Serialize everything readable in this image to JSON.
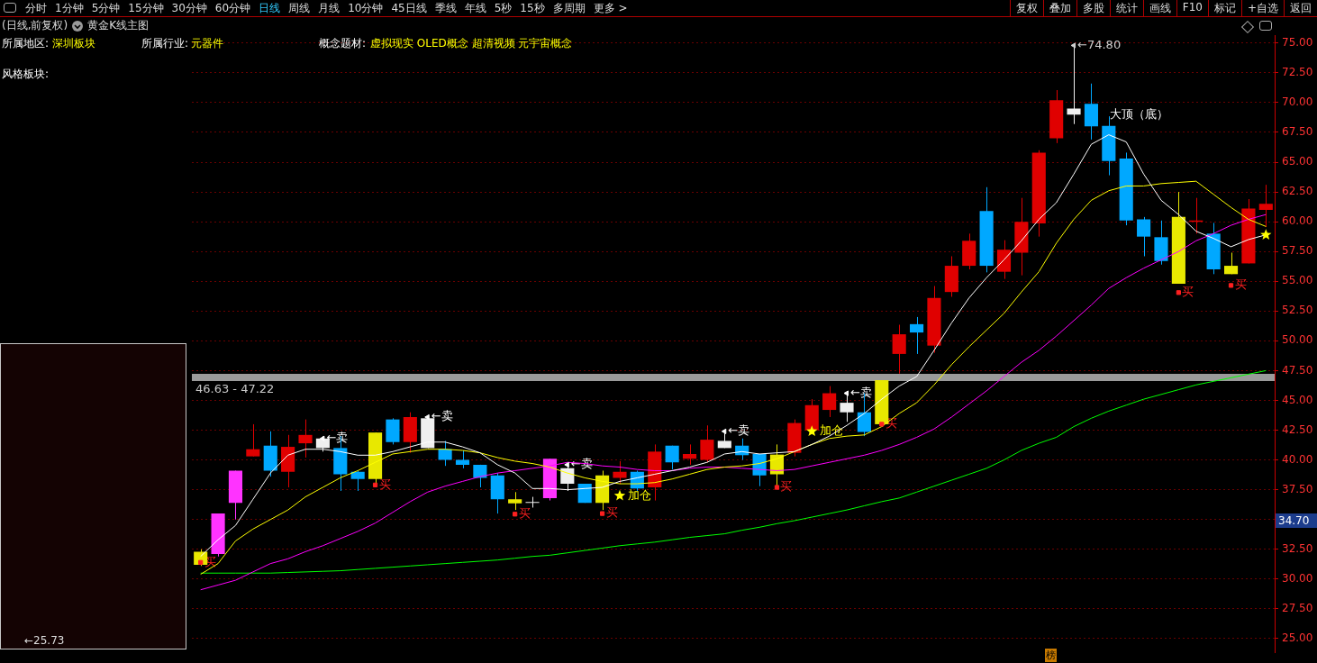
{
  "chart_data": {
    "type": "candlestick",
    "title": "(日线,前复权)",
    "subtitle": "黄金K线主图",
    "annotations": [
      "分时",
      "1分钟",
      "5分钟",
      "15分钟",
      "30分钟",
      "60分钟",
      "日线",
      "周线",
      "月线",
      "10分钟",
      "45日线",
      "季线",
      "年线",
      "5秒",
      "15秒",
      "多周期",
      "更多 >",
      "复权",
      "叠加",
      "多股",
      "统计",
      "画线",
      "F10",
      "标记",
      "+自选",
      "返回",
      "所属地区:",
      "深圳板块",
      "所属行业:",
      "元器件",
      "概念题材:",
      "虚拟现实 OLED概念 超清视频 元宇宙概念",
      "风格板块:",
      "←25.73",
      "榜",
      "34.70",
      "大顶（底）"
    ],
    "categories": [
      null,
      null,
      null,
      null,
      null,
      null,
      null,
      null,
      null,
      null,
      null,
      null,
      null,
      null,
      null,
      null,
      null,
      null,
      null,
      null,
      null,
      null,
      null,
      null,
      null,
      null,
      null,
      null,
      null,
      null,
      null,
      null,
      null,
      null,
      null,
      null,
      null,
      null,
      null,
      null,
      null,
      null,
      null,
      null,
      null,
      null,
      null,
      null,
      null,
      null,
      null,
      null,
      null,
      null,
      null,
      null,
      null,
      null,
      null,
      null,
      null,
      null
    ],
    "ohlc": [
      [
        31.2,
        32.5,
        31.1,
        32.3
      ],
      [
        32.1,
        35.5,
        31.9,
        35.5
      ],
      [
        36.4,
        39.1,
        35.0,
        39.1
      ],
      [
        40.3,
        43.0,
        40.3,
        40.9
      ],
      [
        41.2,
        42.4,
        38.6,
        39.1
      ],
      [
        39.0,
        42.1,
        37.7,
        41.1
      ],
      [
        41.4,
        43.4,
        40.2,
        42.1
      ],
      [
        41.8,
        42.0,
        40.7,
        41.0
      ],
      [
        41.0,
        42.0,
        37.4,
        38.8
      ],
      [
        39.0,
        39.1,
        37.4,
        38.4
      ],
      [
        38.4,
        42.3,
        38.0,
        42.3
      ],
      [
        43.4,
        43.5,
        41.3,
        41.5
      ],
      [
        41.5,
        44.0,
        40.6,
        43.6
      ],
      [
        43.5,
        43.6,
        41.0,
        41.0
      ],
      [
        40.9,
        41.6,
        39.5,
        40.0
      ],
      [
        40.0,
        40.8,
        39.3,
        39.6
      ],
      [
        39.6,
        39.6,
        37.7,
        38.5
      ],
      [
        38.7,
        38.9,
        35.5,
        36.7
      ],
      [
        36.35,
        37.3,
        35.8,
        36.7
      ],
      [
        36.4,
        36.9,
        36.0,
        36.4
      ],
      [
        36.8,
        40.1,
        36.6,
        40.1
      ],
      [
        39.3,
        39.6,
        37.4,
        38.0
      ],
      [
        38.0,
        38.0,
        36.4,
        36.4
      ],
      [
        36.4,
        39.1,
        35.8,
        38.7
      ],
      [
        38.5,
        39.9,
        38.0,
        39.0
      ],
      [
        39.0,
        39.1,
        37.4,
        37.6
      ],
      [
        37.7,
        41.3,
        36.6,
        40.7
      ],
      [
        41.2,
        41.2,
        39.2,
        39.8
      ],
      [
        40.1,
        41.3,
        39.6,
        40.5
      ],
      [
        40.0,
        42.9,
        39.8,
        41.7
      ],
      [
        41.6,
        42.4,
        41.0,
        41.0
      ],
      [
        41.2,
        41.8,
        40.0,
        40.4
      ],
      [
        40.5,
        40.5,
        37.8,
        38.7
      ],
      [
        38.8,
        41.3,
        37.7,
        40.45
      ],
      [
        40.6,
        43.4,
        40.3,
        43.1
      ],
      [
        42.5,
        45.1,
        42.5,
        44.6
      ],
      [
        44.2,
        46.2,
        43.6,
        45.6
      ],
      [
        44.8,
        45.6,
        43.2,
        44.0
      ],
      [
        44.0,
        45.6,
        42.0,
        42.35
      ],
      [
        43.0,
        46.7,
        42.8,
        46.7
      ],
      [
        48.9,
        51.35,
        47.25,
        50.55
      ],
      [
        51.4,
        52.0,
        48.9,
        50.7
      ],
      [
        49.6,
        54.6,
        49.0,
        53.6
      ],
      [
        54.1,
        57.1,
        53.7,
        56.3
      ],
      [
        56.3,
        59.0,
        56.0,
        58.4
      ],
      [
        60.9,
        62.9,
        55.75,
        56.3
      ],
      [
        55.8,
        58.45,
        55.2,
        57.65
      ],
      [
        57.4,
        62.0,
        55.5,
        60.0
      ],
      [
        59.85,
        66.0,
        58.75,
        65.8
      ],
      [
        67.0,
        71.05,
        66.6,
        70.2
      ],
      [
        69.5,
        74.8,
        68.2,
        69.0
      ],
      [
        69.9,
        71.6,
        66.9,
        68.0
      ],
      [
        68.05,
        68.85,
        63.9,
        65.1
      ],
      [
        65.3,
        65.8,
        59.7,
        60.1
      ],
      [
        60.2,
        60.4,
        57.1,
        58.75
      ],
      [
        58.7,
        60.1,
        56.4,
        56.7
      ],
      [
        54.8,
        62.5,
        54.8,
        60.4
      ],
      [
        60.0,
        62.0,
        59.0,
        60.1
      ],
      [
        59.0,
        59.9,
        55.6,
        56.0
      ],
      [
        55.6,
        57.4,
        55.6,
        56.3
      ],
      [
        56.5,
        61.9,
        56.5,
        61.1
      ],
      [
        61.0,
        63.1,
        59.55,
        61.5
      ]
    ],
    "colors": [
      "#e8e800",
      "#ff33ff",
      "#ff33ff",
      "#e00000",
      "#00a8ff",
      "#e00000",
      "#e00000",
      "#f0f0f0",
      "#00a8ff",
      "#00a8ff",
      "#e8e800",
      "#00a8ff",
      "#e00000",
      "#f0f0f0",
      "#00a8ff",
      "#00a8ff",
      "#00a8ff",
      "#00a8ff",
      "#e8e800",
      "#f0f0f0",
      "#ff33ff",
      "#f0f0f0",
      "#00a8ff",
      "#e8e800",
      "#e00000",
      "#00a8ff",
      "#e00000",
      "#00a8ff",
      "#e00000",
      "#e00000",
      "#f0f0f0",
      "#00a8ff",
      "#00a8ff",
      "#e8e800",
      "#e00000",
      "#e00000",
      "#e00000",
      "#f0f0f0",
      "#00a8ff",
      "#e8e800",
      "#e00000",
      "#00a8ff",
      "#e00000",
      "#e00000",
      "#e00000",
      "#00a8ff",
      "#e00000",
      "#e00000",
      "#e00000",
      "#e00000",
      "#f0f0f0",
      "#00a8ff",
      "#00a8ff",
      "#00a8ff",
      "#00a8ff",
      "#00a8ff",
      "#e8e800",
      "#e00000",
      "#00a8ff",
      "#e8e800",
      "#e00000",
      "#e00000"
    ],
    "series": [
      {
        "type": "line",
        "color": "#ffffff",
        "values": [
          31.9,
          33.3,
          34.5,
          36.7,
          38.9,
          40.4,
          40.9,
          40.9,
          40.7,
          40.4,
          40.4,
          40.7,
          41.1,
          41.5,
          41.5,
          41.1,
          40.6,
          39.6,
          38.9,
          37.6,
          37.6,
          37.5,
          37.6,
          37.7,
          38.2,
          38.5,
          38.8,
          39.1,
          39.4,
          39.8,
          40.5,
          40.7,
          40.5,
          40.6,
          40.7,
          41.3,
          42.0,
          42.9,
          43.9,
          45.1,
          46.2,
          47.0,
          49.2,
          51.5,
          53.6,
          55.3,
          56.8,
          58.4,
          60.2,
          61.6,
          64.0,
          66.5,
          67.3,
          66.7,
          64.0,
          61.8,
          60.6,
          59.2,
          58.6,
          57.9,
          58.5,
          58.9
        ]
      },
      {
        "type": "line",
        "color": "#ffff00",
        "values": [
          30.4,
          31.3,
          33.2,
          34.2,
          35.0,
          35.8,
          36.9,
          37.7,
          38.5,
          39.1,
          39.8,
          40.5,
          40.7,
          40.9,
          40.9,
          40.8,
          40.6,
          40.2,
          39.9,
          39.7,
          39.4,
          38.9,
          38.5,
          38.2,
          38.0,
          38.0,
          38.1,
          38.4,
          38.8,
          39.2,
          39.4,
          39.5,
          39.7,
          40.1,
          40.7,
          41.3,
          41.8,
          42.0,
          42.1,
          42.8,
          43.9,
          44.8,
          46.3,
          48.0,
          49.5,
          50.9,
          52.3,
          54.1,
          55.8,
          58.2,
          60.2,
          61.8,
          62.6,
          63.0,
          63.0,
          63.2,
          63.3,
          63.4,
          62.3,
          61.2,
          60.2,
          59.6
        ]
      },
      {
        "type": "line",
        "color": "#ff00ff",
        "values": [
          29.1,
          29.5,
          29.9,
          30.6,
          31.3,
          31.7,
          32.3,
          32.8,
          33.4,
          34.0,
          34.7,
          35.6,
          36.5,
          37.3,
          37.8,
          38.2,
          38.6,
          38.9,
          39.1,
          39.3,
          39.5,
          39.8,
          39.7,
          39.5,
          39.4,
          39.2,
          39.1,
          39.1,
          39.3,
          39.4,
          39.4,
          39.3,
          39.2,
          39.1,
          39.2,
          39.5,
          39.8,
          40.1,
          40.4,
          40.8,
          41.3,
          41.9,
          42.6,
          43.6,
          44.7,
          45.8,
          47.0,
          48.2,
          49.2,
          50.4,
          51.7,
          53.0,
          54.4,
          55.3,
          56.1,
          56.8,
          57.5,
          58.4,
          59.0,
          59.7,
          60.2,
          60.6
        ]
      },
      {
        "type": "line",
        "color": "#00ff00",
        "values": [
          30.5,
          30.5,
          30.5,
          30.5,
          30.5,
          30.55,
          30.6,
          30.65,
          30.7,
          30.8,
          30.9,
          31.0,
          31.1,
          31.2,
          31.3,
          31.4,
          31.5,
          31.6,
          31.75,
          31.9,
          32.0,
          32.2,
          32.4,
          32.6,
          32.8,
          32.95,
          33.1,
          33.3,
          33.5,
          33.65,
          33.8,
          34.1,
          34.35,
          34.65,
          34.9,
          35.2,
          35.5,
          35.8,
          36.15,
          36.5,
          36.8,
          37.3,
          37.8,
          38.3,
          38.8,
          39.3,
          40.0,
          40.8,
          41.4,
          41.9,
          42.8,
          43.5,
          44.1,
          44.6,
          45.1,
          45.5,
          45.9,
          46.3,
          46.6,
          46.9,
          47.2,
          47.5
        ]
      },
      {
        "type": "scatter",
        "marker": "square",
        "color": "#ff2020",
        "values": [
          31.4,
          null,
          null,
          null,
          null,
          null,
          null,
          null,
          null,
          null,
          37.9,
          null,
          null,
          null,
          null,
          null,
          null,
          null,
          35.45,
          null,
          null,
          null,
          null,
          35.5,
          null,
          null,
          null,
          null,
          null,
          null,
          null,
          null,
          null,
          37.7,
          null,
          null,
          null,
          null,
          null,
          43.0,
          null,
          null,
          null,
          null,
          null,
          null,
          null,
          null,
          null,
          null,
          null,
          null,
          null,
          null,
          null,
          null,
          54.05,
          null,
          null,
          54.65,
          null,
          null
        ],
        "value_labels": [
          "买",
          null,
          null,
          null,
          null,
          null,
          null,
          null,
          null,
          null,
          "买",
          null,
          null,
          null,
          null,
          null,
          null,
          null,
          "买",
          null,
          null,
          null,
          null,
          "买",
          null,
          null,
          null,
          null,
          null,
          null,
          null,
          null,
          null,
          "买",
          null,
          null,
          null,
          null,
          null,
          "买",
          null,
          null,
          null,
          null,
          null,
          null,
          null,
          null,
          null,
          null,
          null,
          null,
          null,
          null,
          null,
          null,
          "买",
          null,
          null,
          "买",
          null,
          null
        ]
      },
      {
        "type": "scatter",
        "marker": "triangle",
        "color": "#ffffff",
        "values": [
          null,
          null,
          null,
          null,
          null,
          null,
          null,
          41.8,
          null,
          null,
          null,
          null,
          null,
          43.6,
          null,
          null,
          null,
          null,
          null,
          null,
          null,
          39.6,
          null,
          null,
          null,
          null,
          null,
          null,
          null,
          null,
          42.4,
          null,
          null,
          null,
          null,
          null,
          null,
          45.6,
          null,
          null,
          null,
          null,
          null,
          null,
          null,
          null,
          null,
          null,
          null,
          null,
          null,
          null,
          null,
          null,
          null,
          null,
          null,
          null,
          null,
          null,
          null,
          null
        ],
        "value_labels": [
          null,
          null,
          null,
          null,
          null,
          null,
          null,
          "←卖",
          null,
          null,
          null,
          null,
          null,
          "←卖",
          null,
          null,
          null,
          null,
          null,
          null,
          null,
          "←卖",
          null,
          null,
          null,
          null,
          null,
          null,
          null,
          null,
          "←卖",
          null,
          null,
          null,
          null,
          null,
          null,
          "←卖",
          null,
          null,
          null,
          null,
          null,
          null,
          null,
          null,
          null,
          null,
          null,
          null,
          null,
          null,
          null,
          null,
          null,
          null,
          null,
          null,
          null,
          null,
          null,
          null
        ]
      },
      {
        "type": "scatter",
        "marker": "star",
        "color": "#ffff00",
        "values": [
          null,
          null,
          null,
          null,
          null,
          null,
          null,
          null,
          null,
          null,
          null,
          null,
          null,
          null,
          null,
          null,
          null,
          null,
          null,
          null,
          null,
          null,
          null,
          null,
          37.0,
          null,
          null,
          null,
          null,
          null,
          null,
          null,
          null,
          null,
          null,
          42.4,
          null,
          null,
          null,
          null,
          null,
          null,
          null,
          null,
          null,
          null,
          null,
          null,
          null,
          null,
          null,
          null,
          null,
          null,
          null,
          null,
          null,
          null,
          null,
          null,
          null,
          58.9
        ],
        "value_labels": [
          null,
          null,
          null,
          null,
          null,
          null,
          null,
          null,
          null,
          null,
          null,
          null,
          null,
          null,
          null,
          null,
          null,
          null,
          null,
          null,
          null,
          null,
          null,
          null,
          "加仓",
          null,
          null,
          null,
          null,
          null,
          null,
          null,
          null,
          null,
          null,
          "加仓",
          null,
          null,
          null,
          null,
          null,
          null,
          null,
          null,
          null,
          null,
          null,
          null,
          null,
          null,
          null,
          null,
          null,
          null,
          null,
          null,
          null,
          null,
          null,
          null,
          null,
          null
        ]
      },
      {
        "type": "scatter",
        "marker": "triangle",
        "color": "#d0d0d0",
        "values": [
          null,
          null,
          null,
          null,
          null,
          null,
          null,
          null,
          null,
          null,
          null,
          null,
          null,
          null,
          null,
          null,
          null,
          null,
          null,
          null,
          null,
          null,
          null,
          null,
          null,
          null,
          null,
          null,
          null,
          null,
          null,
          null,
          null,
          null,
          null,
          null,
          null,
          null,
          null,
          null,
          null,
          null,
          null,
          null,
          null,
          null,
          null,
          null,
          null,
          null,
          74.8,
          null,
          null,
          null,
          null,
          null,
          null,
          null,
          null,
          null,
          null,
          null
        ],
        "value_labels": [
          null,
          null,
          null,
          null,
          null,
          null,
          null,
          null,
          null,
          null,
          null,
          null,
          null,
          null,
          null,
          null,
          null,
          null,
          null,
          null,
          null,
          null,
          null,
          null,
          null,
          null,
          null,
          null,
          null,
          null,
          null,
          null,
          null,
          null,
          null,
          null,
          null,
          null,
          null,
          null,
          null,
          null,
          null,
          null,
          null,
          null,
          null,
          null,
          null,
          null,
          "←74.80",
          null,
          null,
          null,
          null,
          null,
          null,
          null,
          null,
          null,
          null,
          null
        ]
      }
    ],
    "ylim": [
      23.8,
      75.65
    ],
    "yticks": [
      {
        "value": 25,
        "label": "25.00"
      },
      {
        "value": 27.5,
        "label": "27.50"
      },
      {
        "value": 30,
        "label": "30.00"
      },
      {
        "value": 32.5,
        "label": "32.50"
      },
      {
        "value": 35,
        "label": null
      },
      {
        "value": 37.5,
        "label": "37.50"
      },
      {
        "value": 40,
        "label": "40.00"
      },
      {
        "value": 42.5,
        "label": "42.50"
      },
      {
        "value": 45,
        "label": "45.00"
      },
      {
        "value": 47.5,
        "label": "47.50"
      },
      {
        "value": 50,
        "label": "50.00"
      },
      {
        "value": 52.5,
        "label": "52.50"
      },
      {
        "value": 55,
        "label": "55.00"
      },
      {
        "value": 57.5,
        "label": "57.50"
      },
      {
        "value": 60,
        "label": "60.00"
      },
      {
        "value": 62.5,
        "label": "62.50"
      },
      {
        "value": 65,
        "label": "65.00"
      },
      {
        "value": 67.5,
        "label": "67.50"
      },
      {
        "value": 70,
        "label": "70.00"
      },
      {
        "value": 72.5,
        "label": "72.50"
      },
      {
        "value": 75,
        "label": "75.00"
      }
    ],
    "bands": [
      {
        "axis": "y",
        "from": 46.63,
        "to": 47.22,
        "label": "46.63 - 47.22",
        "color": "#9a9a9a"
      }
    ],
    "grid": "y",
    "legend": false,
    "tick_labels": "y"
  }
}
